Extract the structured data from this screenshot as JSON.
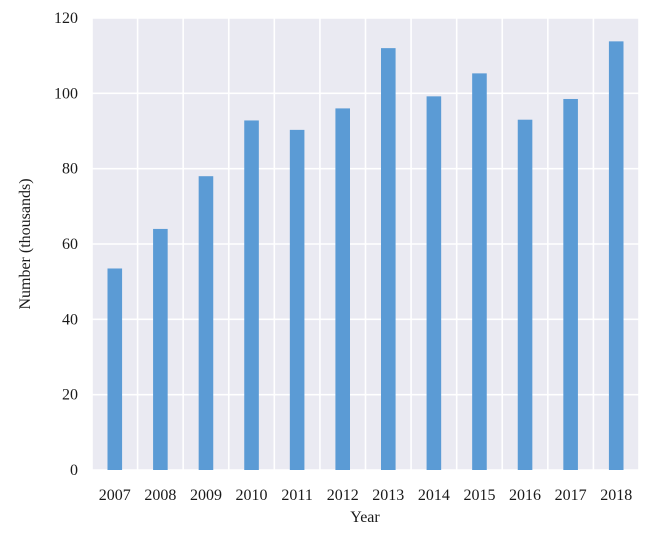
{
  "chart_data": {
    "type": "bar",
    "title": "",
    "xlabel": "Year",
    "ylabel": "Number (thousands)",
    "categories": [
      "2007",
      "2008",
      "2009",
      "2010",
      "2011",
      "2012",
      "2013",
      "2014",
      "2015",
      "2016",
      "2017",
      "2018"
    ],
    "values": [
      53.5,
      64,
      78,
      92.8,
      90.3,
      96,
      112,
      99.2,
      105.3,
      93,
      98.5,
      113.8
    ],
    "ylim": [
      0,
      120
    ],
    "yticks": [
      0,
      20,
      40,
      60,
      80,
      100,
      120
    ],
    "grid": true,
    "legend": "none",
    "colors": {
      "bar": "#5b9bd5",
      "plot_background": "#eaeaf2",
      "grid": "#ffffff"
    }
  }
}
